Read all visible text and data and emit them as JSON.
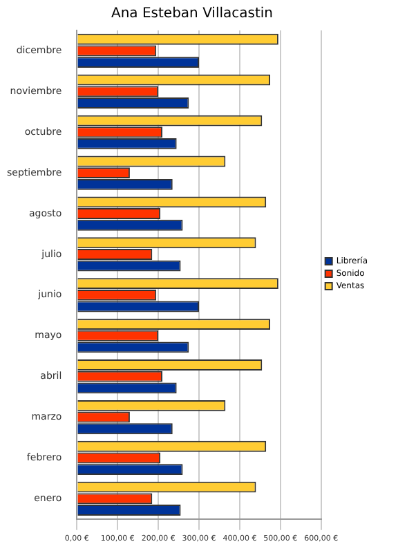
{
  "chart_data": {
    "type": "bar",
    "orientation": "horizontal",
    "title": "Ana Esteban Villacastin",
    "categories": [
      "dicembre",
      "noviembre",
      "octubre",
      "septiembre",
      "agosto",
      "julio",
      "junio",
      "mayo",
      "abril",
      "marzo",
      "febrero",
      "enero"
    ],
    "series": [
      {
        "name": "Librería",
        "color": "#003399",
        "values": [
          300,
          275,
          245,
          235,
          260,
          255,
          300,
          275,
          245,
          235,
          260,
          255
        ]
      },
      {
        "name": "Sonido",
        "color": "#ff3300",
        "values": [
          195,
          200,
          210,
          130,
          205,
          185,
          195,
          200,
          210,
          130,
          205,
          185
        ]
      },
      {
        "name": "Ventas",
        "color": "#ffcc33",
        "values": [
          495,
          475,
          455,
          365,
          465,
          440,
          495,
          475,
          455,
          365,
          465,
          440
        ]
      }
    ],
    "xlim": [
      0,
      600
    ],
    "xticks": [
      {
        "value": 0,
        "label": "0,00 €"
      },
      {
        "value": 100,
        "label": "100,00 €"
      },
      {
        "value": 200,
        "label": "200,00 €"
      },
      {
        "value": 300,
        "label": "300,00 €"
      },
      {
        "value": 400,
        "label": "400,00 €"
      },
      {
        "value": 500,
        "label": "500,00 €"
      },
      {
        "value": 600,
        "label": "600,00 €"
      }
    ],
    "grid": "x",
    "legend": "right"
  }
}
